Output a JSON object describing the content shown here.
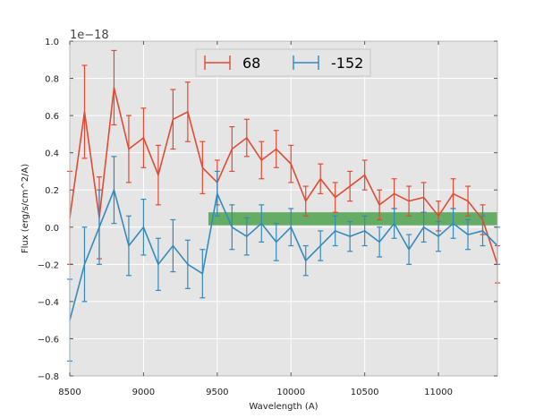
{
  "chart_data": {
    "type": "line",
    "title": "",
    "xlabel": "Wavelength (A)",
    "ylabel": "Flux (erg/s/cm^2/A)",
    "offset_text": "1e−18",
    "xlim": [
      8500,
      11400
    ],
    "ylim": [
      -0.8,
      1.0
    ],
    "xticks": [
      8500,
      9000,
      9500,
      10000,
      10500,
      11000
    ],
    "xtick_labels": [
      "8500",
      "9000",
      "9500",
      "10000",
      "10500",
      "11000"
    ],
    "yticks": [
      -0.8,
      -0.6,
      -0.4,
      -0.2,
      0.0,
      0.2,
      0.4,
      0.6,
      0.8,
      1.0
    ],
    "ytick_labels": [
      "−0.8",
      "−0.6",
      "−0.4",
      "−0.2",
      "0.0",
      "0.2",
      "0.4",
      "0.6",
      "0.8",
      "1.0"
    ],
    "grid": true,
    "legend_position": "top-center",
    "band": {
      "x": [
        9440,
        11400
      ],
      "y": [
        0.01,
        0.08
      ],
      "color": "#3a9a3a"
    },
    "series": [
      {
        "name": "68",
        "color": "#e24a33",
        "x": [
          8500,
          8600,
          8700,
          8800,
          8900,
          9000,
          9100,
          9200,
          9300,
          9400,
          9500,
          9600,
          9700,
          9800,
          9900,
          10000,
          10100,
          10200,
          10300,
          10400,
          10500,
          10600,
          10700,
          10800,
          10900,
          11000,
          11100,
          11200,
          11300,
          11400
        ],
        "y": [
          0.05,
          0.62,
          0.05,
          0.75,
          0.42,
          0.48,
          0.28,
          0.58,
          0.62,
          0.32,
          0.24,
          0.42,
          0.48,
          0.36,
          0.42,
          0.34,
          0.14,
          0.26,
          0.16,
          0.22,
          0.28,
          0.12,
          0.18,
          0.14,
          0.16,
          0.06,
          0.18,
          0.14,
          0.04,
          -0.2
        ],
        "err": [
          0.25,
          0.25,
          0.22,
          0.2,
          0.18,
          0.16,
          0.16,
          0.16,
          0.16,
          0.14,
          0.12,
          0.12,
          0.1,
          0.1,
          0.1,
          0.1,
          0.08,
          0.08,
          0.08,
          0.08,
          0.08,
          0.08,
          0.08,
          0.08,
          0.08,
          0.08,
          0.08,
          0.08,
          0.08,
          0.1
        ]
      },
      {
        "name": "-152",
        "color": "#348abd",
        "x": [
          8500,
          8600,
          8700,
          8800,
          8900,
          9000,
          9100,
          9200,
          9300,
          9400,
          9500,
          9600,
          9700,
          9800,
          9900,
          10000,
          10100,
          10200,
          10300,
          10400,
          10500,
          10600,
          10700,
          10800,
          10900,
          11000,
          11100,
          11200,
          11300,
          11400
        ],
        "y": [
          -0.5,
          -0.2,
          0.0,
          0.2,
          -0.1,
          0.0,
          -0.2,
          -0.1,
          -0.2,
          -0.25,
          0.18,
          0.0,
          -0.05,
          0.02,
          -0.08,
          0.0,
          -0.18,
          -0.1,
          -0.02,
          -0.05,
          -0.02,
          -0.08,
          0.02,
          -0.12,
          0.0,
          -0.05,
          0.02,
          -0.04,
          -0.02,
          -0.1
        ],
        "err": [
          0.22,
          0.2,
          0.2,
          0.18,
          0.16,
          0.15,
          0.14,
          0.14,
          0.13,
          0.13,
          0.12,
          0.12,
          0.1,
          0.1,
          0.1,
          0.1,
          0.08,
          0.08,
          0.08,
          0.08,
          0.08,
          0.08,
          0.08,
          0.08,
          0.08,
          0.08,
          0.08,
          0.08,
          0.08,
          0.1
        ]
      }
    ]
  }
}
